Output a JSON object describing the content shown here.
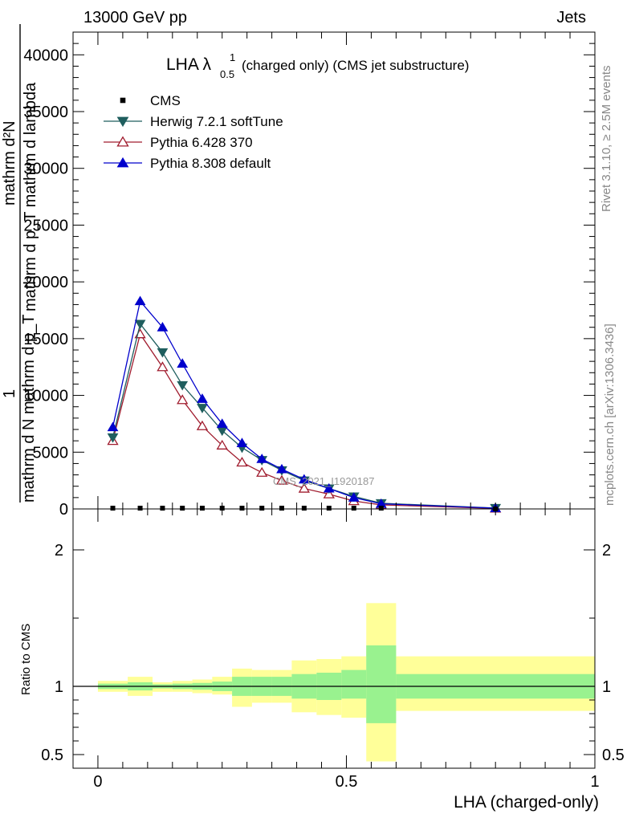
{
  "header": {
    "left": "13000 GeV pp",
    "right": "Jets"
  },
  "side": {
    "rivet": "Rivet 3.1.10, ≥ 2.5M events",
    "mcplots": "mcplots.cern.ch [arXiv:1306.3436]"
  },
  "chart_data": [
    {
      "type": "line",
      "title_main": "LHA λ",
      "title_sup": "1",
      "title_sub": "0.5",
      "title_rest": "(charged only) (CMS jet substructure)",
      "watermark": "CMS_2021_I1920187",
      "ylabel_lines": [
        "mathrm d²N",
        "mathrm d p_T mathrm d lambda",
        "1",
        "mathrm d N mathrm d p_T"
      ],
      "xlim": [
        -0.05,
        1.0
      ],
      "ylim": [
        0,
        42000
      ],
      "y_ticks": [
        0,
        5000,
        10000,
        15000,
        20000,
        25000,
        30000,
        35000,
        40000
      ],
      "y_tick_labels": [
        "0",
        "5000",
        "10000",
        "15000",
        "20000",
        "25000",
        "30000",
        "35000",
        "40000"
      ],
      "legend_position": "top-left",
      "bin_edges": [
        0,
        0.06,
        0.11,
        0.15,
        0.19,
        0.23,
        0.27,
        0.31,
        0.35,
        0.39,
        0.44,
        0.49,
        0.54,
        0.6,
        1.0
      ],
      "x": [
        0.03,
        0.085,
        0.13,
        0.17,
        0.21,
        0.25,
        0.29,
        0.33,
        0.37,
        0.415,
        0.465,
        0.515,
        0.57,
        0.8
      ],
      "series": [
        {
          "name": "CMS",
          "color": "#000000",
          "marker": "square-filled",
          "values": [
            0,
            0,
            0,
            0,
            0,
            0,
            0,
            0,
            0,
            0,
            0,
            0,
            0,
            0
          ]
        },
        {
          "name": "Herwig 7.2.1 softTune",
          "color": "#1f5e5e",
          "marker": "triangle-down-filled",
          "values": [
            6300,
            16300,
            13800,
            10900,
            8900,
            6900,
            5400,
            4300,
            3400,
            2500,
            1800,
            1100,
            500,
            80
          ]
        },
        {
          "name": "Pythia 6.428 370",
          "color": "#a01c2e",
          "marker": "triangle-up-open",
          "values": [
            6000,
            15400,
            12500,
            9600,
            7300,
            5600,
            4100,
            3200,
            2500,
            1800,
            1300,
            700,
            350,
            50
          ]
        },
        {
          "name": "Pythia 8.308 default",
          "color": "#0000cc",
          "marker": "triangle-up-filled",
          "values": [
            7200,
            18300,
            16000,
            12800,
            9700,
            7500,
            5800,
            4400,
            3500,
            2600,
            1800,
            1000,
            450,
            70
          ]
        }
      ]
    },
    {
      "type": "area",
      "ylabel": "Ratio to CMS",
      "xlabel": "LHA (charged-only)",
      "xlim": [
        -0.05,
        1.0
      ],
      "ylim": [
        0.4,
        2.3
      ],
      "y_ticks": [
        0.5,
        1,
        2
      ],
      "y_tick_labels": [
        "0.5",
        "1",
        "2"
      ],
      "x_ticks": [
        0,
        0.5,
        1
      ],
      "x_tick_labels": [
        "0",
        "0.5",
        "1"
      ],
      "bin_edges": [
        0,
        0.06,
        0.11,
        0.15,
        0.19,
        0.23,
        0.27,
        0.31,
        0.35,
        0.39,
        0.44,
        0.49,
        0.54,
        0.6,
        1.0
      ],
      "bands": [
        {
          "name": "total uncertainty",
          "color": "#ffff99",
          "low": [
            0.96,
            0.93,
            0.96,
            0.96,
            0.95,
            0.94,
            0.85,
            0.88,
            0.88,
            0.81,
            0.79,
            0.77,
            0.45,
            0.82
          ],
          "high": [
            1.04,
            1.07,
            1.03,
            1.04,
            1.05,
            1.07,
            1.13,
            1.12,
            1.12,
            1.19,
            1.2,
            1.22,
            1.61,
            1.22
          ]
        },
        {
          "name": "statistical uncertainty",
          "color": "#99f28f",
          "low": [
            0.98,
            0.97,
            0.985,
            0.98,
            0.975,
            0.965,
            0.93,
            0.93,
            0.93,
            0.91,
            0.9,
            0.91,
            0.73,
            0.91
          ]
        },
        {
          "name": "statistical uncertainty high",
          "color": "#99f28f",
          "high": [
            1.02,
            1.03,
            1.015,
            1.02,
            1.025,
            1.035,
            1.07,
            1.07,
            1.07,
            1.09,
            1.1,
            1.12,
            1.3,
            1.09
          ]
        }
      ]
    }
  ]
}
